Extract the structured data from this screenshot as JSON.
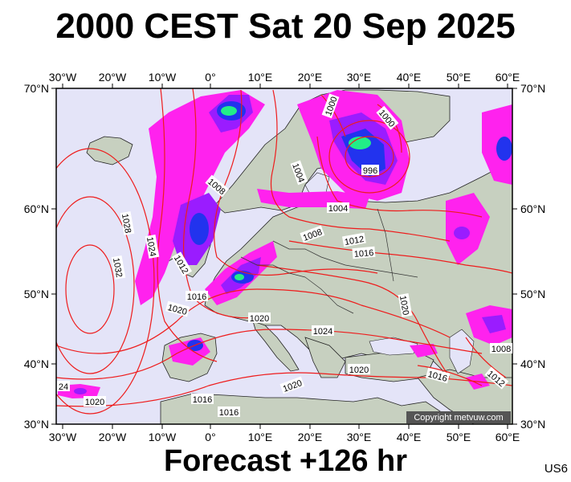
{
  "title": "2000 CEST Sat 20 Sep 2025",
  "footer": "Forecast +126 hr",
  "product_code": "US6",
  "copyright": "Copyright metvuw.com",
  "longitude_labels": [
    "30°W",
    "20°W",
    "10°W",
    "0°",
    "10°E",
    "20°E",
    "30°E",
    "40°E",
    "50°E",
    "60°E"
  ],
  "latitude_labels": [
    "70°N",
    "60°N",
    "50°N",
    "40°N",
    "30°N"
  ],
  "isobar_labels": [
    "1000",
    "1000",
    "996",
    "1004",
    "1008",
    "1004",
    "1008",
    "1012",
    "1016",
    "1028",
    "1024",
    "1032",
    "1012",
    "1016",
    "1020",
    "1020",
    "1024",
    "1020",
    "1020",
    "1020",
    "1016",
    "1012",
    "1008",
    "1020",
    "1016",
    "1016",
    "24"
  ],
  "colors": {
    "ocean": "#e4e4f8",
    "land": "#c7d0c0",
    "isobar": "#ee1c1c",
    "precip_light": "#ff22ee",
    "precip_medium": "#9a1cff",
    "precip_heavy": "#2233ee",
    "precip_extreme": "#22ee88"
  }
}
